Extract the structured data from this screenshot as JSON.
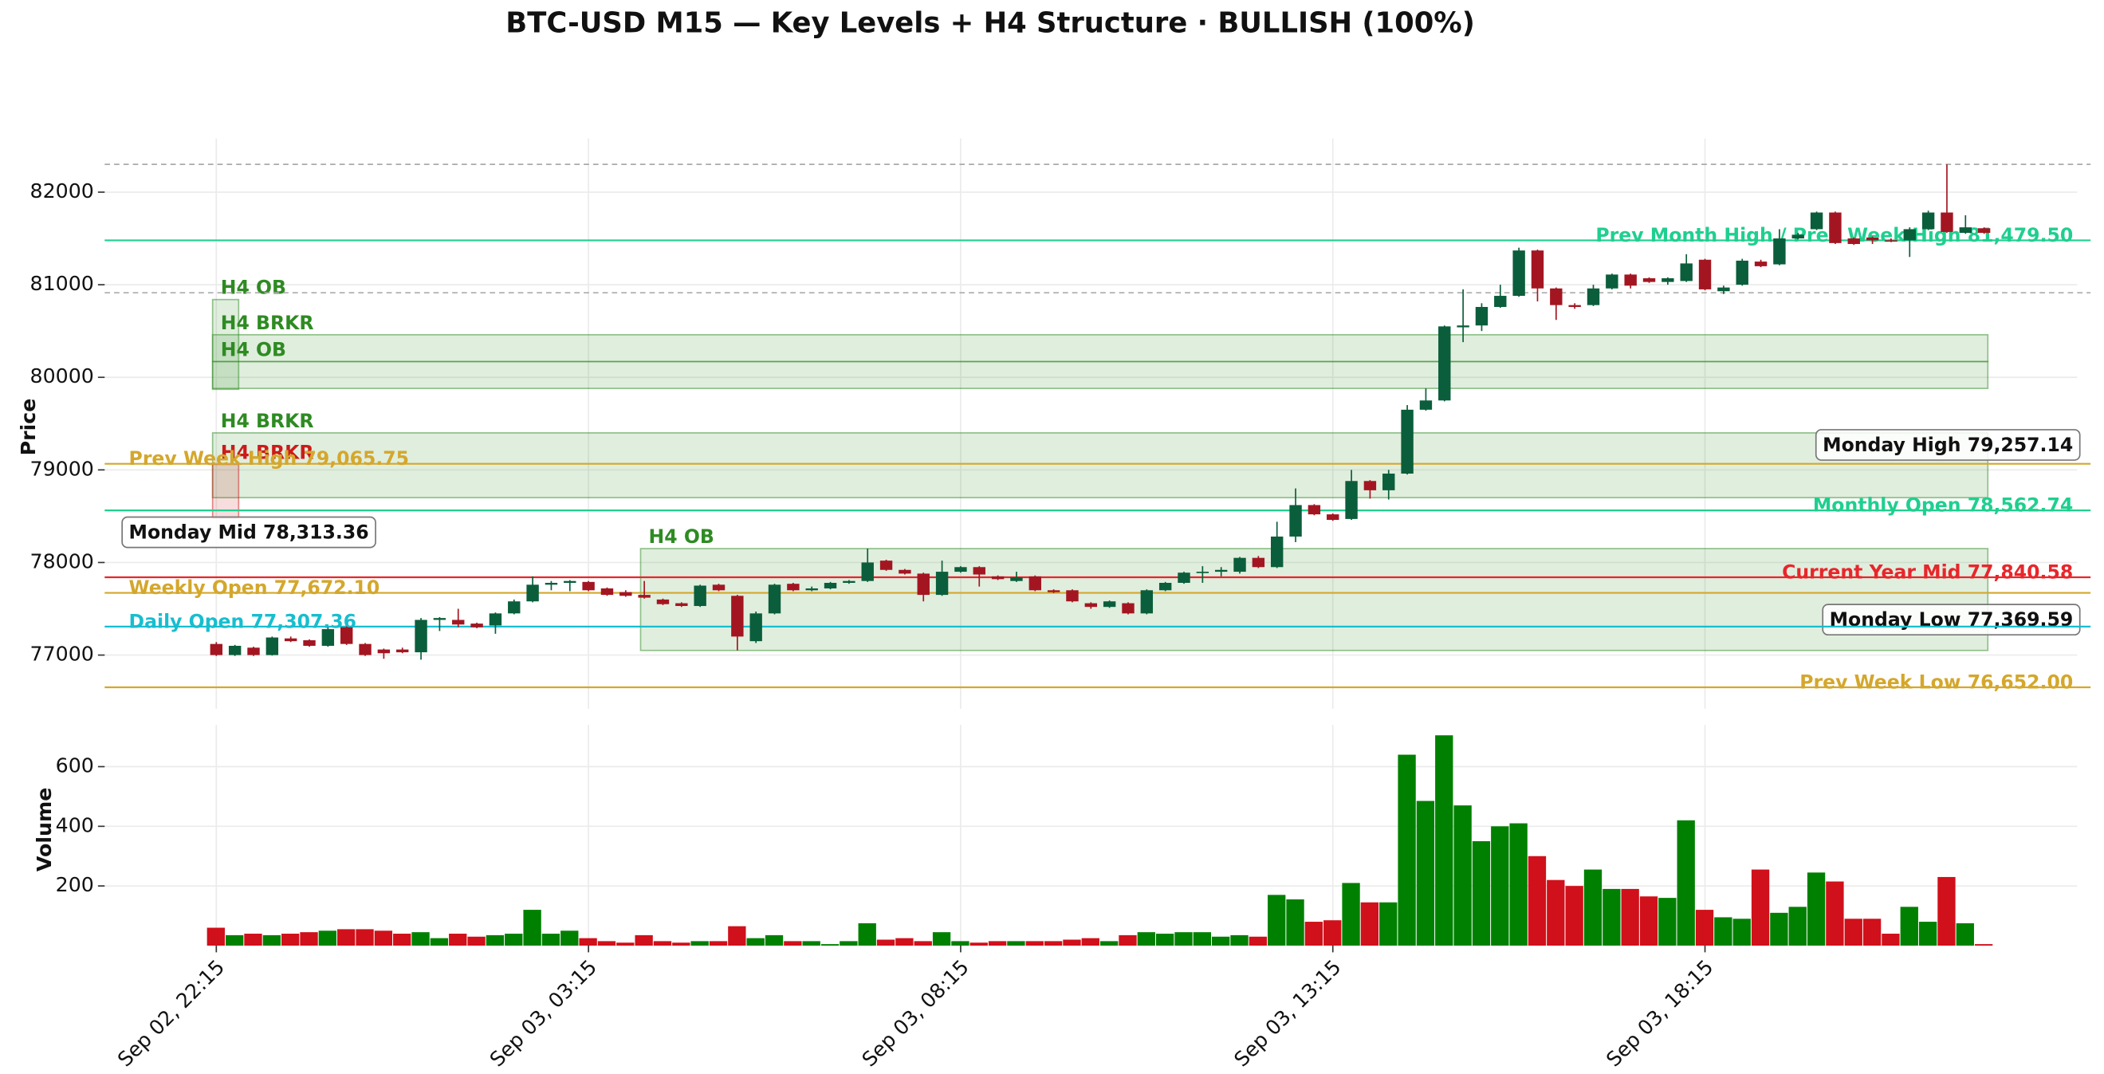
{
  "chart_data": [
    {
      "type": "candlestick",
      "title": "BTC-USD M15 — Key Levels + H4 Structure · BULLISH (100%)",
      "ylabel": "Price",
      "up_color": "#0b5e3b",
      "down_color": "#a31621",
      "grid": true,
      "xlim": [
        -6,
        100
      ],
      "ylim": [
        76420,
        82580
      ],
      "yticks": [
        77000,
        78000,
        79000,
        80000,
        81000,
        82000
      ],
      "categories": [
        "Sep 02, 22:15",
        null,
        null,
        null,
        null,
        null,
        null,
        null,
        null,
        null,
        null,
        null,
        null,
        null,
        null,
        null,
        null,
        null,
        null,
        null,
        "Sep 03, 03:15",
        null,
        null,
        null,
        null,
        null,
        null,
        null,
        null,
        null,
        null,
        null,
        null,
        null,
        null,
        null,
        null,
        null,
        null,
        null,
        "Sep 03, 08:15",
        null,
        null,
        null,
        null,
        null,
        null,
        null,
        null,
        null,
        null,
        null,
        null,
        null,
        null,
        null,
        null,
        null,
        null,
        null,
        "Sep 03, 13:15",
        null,
        null,
        null,
        null,
        null,
        null,
        null,
        null,
        null,
        null,
        null,
        null,
        null,
        null,
        null,
        null,
        null,
        null,
        null,
        "Sep 03, 18:15",
        null,
        null,
        null,
        null,
        null,
        null,
        null,
        null,
        null,
        null,
        null,
        null,
        null,
        null,
        null
      ],
      "open": [
        77120,
        77000,
        77080,
        77000,
        77180,
        77160,
        77100,
        77300,
        77120,
        77060,
        77060,
        77030,
        77380,
        77380,
        77340,
        77320,
        77450,
        77580,
        77760,
        77780,
        77790,
        77720,
        77680,
        77650,
        77600,
        77560,
        77530,
        77760,
        77640,
        77150,
        77450,
        77770,
        77700,
        77720,
        77780,
        77800,
        78020,
        77920,
        77880,
        77650,
        77900,
        77950,
        77850,
        77800,
        77850,
        77700,
        77700,
        77560,
        77520,
        77560,
        77450,
        77700,
        77780,
        77890,
        77900,
        77900,
        78050,
        77950,
        78280,
        78620,
        78520,
        78470,
        78880,
        78780,
        78960,
        79650,
        79750,
        80540,
        80560,
        80760,
        80880,
        81370,
        80960,
        80780,
        80780,
        80960,
        81110,
        81070,
        81030,
        81040,
        81270,
        80930,
        81000,
        81250,
        81220,
        81500,
        81600,
        81780,
        81500,
        81510,
        81480,
        81480,
        81600,
        81780,
        81560,
        81610
      ],
      "high": [
        77140,
        77110,
        77090,
        77200,
        77200,
        77170,
        77300,
        77310,
        77130,
        77070,
        77080,
        77400,
        77410,
        77500,
        77350,
        77460,
        77600,
        77850,
        77800,
        77810,
        77800,
        77730,
        77700,
        77800,
        77610,
        77570,
        77760,
        77770,
        77650,
        77470,
        77770,
        77780,
        77740,
        77790,
        77810,
        78150,
        78030,
        77930,
        77890,
        78020,
        77960,
        77960,
        77860,
        77900,
        77860,
        77710,
        77710,
        77570,
        77590,
        77570,
        77710,
        77790,
        77900,
        77960,
        77950,
        78060,
        78070,
        78440,
        78800,
        78630,
        78530,
        79000,
        78890,
        79000,
        79700,
        79880,
        80560,
        80950,
        80800,
        81000,
        81400,
        81380,
        80970,
        80800,
        81000,
        81120,
        81120,
        81080,
        81080,
        81330,
        81280,
        80990,
        81280,
        81270,
        81600,
        81560,
        81790,
        81790,
        81510,
        81520,
        81500,
        81620,
        81800,
        82300,
        81750,
        81620
      ],
      "low": [
        76990,
        76990,
        76990,
        76995,
        77140,
        77090,
        77090,
        77110,
        76990,
        76960,
        77020,
        76950,
        77260,
        77300,
        77290,
        77230,
        77440,
        77570,
        77700,
        77690,
        77690,
        77640,
        77630,
        77610,
        77540,
        77520,
        77520,
        77690,
        77050,
        77130,
        77440,
        77690,
        77690,
        77710,
        77770,
        77790,
        77910,
        77870,
        77580,
        77640,
        77890,
        77740,
        77810,
        77790,
        77690,
        77670,
        77570,
        77500,
        77510,
        77440,
        77440,
        77690,
        77770,
        77780,
        77850,
        77880,
        77940,
        77940,
        78220,
        78510,
        78450,
        78460,
        78690,
        78680,
        78950,
        79640,
        79740,
        80380,
        80500,
        80750,
        80870,
        80820,
        80620,
        80740,
        80770,
        80950,
        80960,
        81020,
        81000,
        81030,
        80940,
        80900,
        80990,
        81190,
        81210,
        81490,
        81590,
        81440,
        81430,
        81440,
        81460,
        81300,
        81590,
        81560,
        81550,
        81550
      ],
      "close": [
        77000,
        77100,
        77000,
        77190,
        77150,
        77100,
        77280,
        77120,
        77000,
        77020,
        77030,
        77380,
        77400,
        77330,
        77300,
        77450,
        77580,
        77760,
        77780,
        77800,
        77700,
        77650,
        77640,
        77620,
        77550,
        77530,
        77750,
        77700,
        77200,
        77450,
        77760,
        77700,
        77720,
        77780,
        77800,
        78000,
        77920,
        77880,
        77650,
        77900,
        77950,
        77870,
        77820,
        77840,
        77700,
        77680,
        77580,
        77520,
        77580,
        77450,
        77700,
        77780,
        77890,
        77900,
        77920,
        78050,
        77950,
        78280,
        78620,
        78520,
        78460,
        78880,
        78780,
        78960,
        79650,
        79750,
        80550,
        80560,
        80760,
        80880,
        81370,
        80960,
        80780,
        80760,
        80960,
        81110,
        80990,
        81030,
        81070,
        81230,
        80950,
        80970,
        81260,
        81200,
        81500,
        81540,
        81780,
        81450,
        81440,
        81480,
        81470,
        81600,
        81780,
        81570,
        81620,
        81560
      ],
      "dashed_levels": [
        82300,
        80913
      ],
      "levels": [
        {
          "label": "Prev Month High / Prev Week High 81,479.50",
          "value": 81479.5,
          "color": "#1fcf8f",
          "side": "right",
          "boxed": false
        },
        {
          "label": "Monday High 79,257.14",
          "value": 79257.14,
          "color": "#111111",
          "side": "right",
          "boxed": true
        },
        {
          "label": "Prev Week High 79,065.75",
          "value": 79065.75,
          "color": "#d4a72c",
          "side": "left",
          "boxed": false
        },
        {
          "label": "Monthly Open 78,562.74",
          "value": 78562.74,
          "color": "#1fcf8f",
          "side": "right",
          "boxed": false
        },
        {
          "label": "Monday Mid 78,313.36",
          "value": 78313.36,
          "color": "#111111",
          "side": "left",
          "boxed": true
        },
        {
          "label": "Current Year Mid 77,840.58",
          "value": 77840.58,
          "color": "#e8262b",
          "side": "right",
          "boxed": false
        },
        {
          "label": "Weekly Open 77,672.10",
          "value": 77672.1,
          "color": "#d4a72c",
          "side": "left",
          "boxed": false
        },
        {
          "label": "Monday Low 77,369.59",
          "value": 77369.59,
          "color": "#111111",
          "side": "right",
          "boxed": true
        },
        {
          "label": "Daily Open 77,307.36",
          "value": 77307.36,
          "color": "#17becf",
          "side": "left",
          "boxed": false
        },
        {
          "label": "Prev Week Low 76,652.00",
          "value": 76652,
          "color": "#d4a72c",
          "side": "right",
          "boxed": false
        }
      ],
      "zones": [
        {
          "label": "H4 OB",
          "start": -0.2,
          "end": 1.2,
          "low": 79870,
          "high": 80840,
          "color": "#2e8b22"
        },
        {
          "label": "H4 BRKR",
          "start": -0.2,
          "end": 95.2,
          "low": 80170,
          "high": 80460,
          "color": "#2e8b22"
        },
        {
          "label": "H4 OB",
          "start": -0.2,
          "end": 95.2,
          "low": 79880,
          "high": 80170,
          "color": "#2e8b22"
        },
        {
          "label": "H4 BRKR",
          "start": -0.2,
          "end": 95.2,
          "low": 78700,
          "high": 79400,
          "color": "#2e8b22"
        },
        {
          "label": "H4 BRKR",
          "start": -0.2,
          "end": 1.2,
          "low": 78480,
          "high": 79060,
          "color": "#cc1a1a"
        },
        {
          "label": "H4 OB",
          "start": 22.8,
          "end": 95.2,
          "low": 77050,
          "high": 78150,
          "color": "#2e8b22"
        }
      ]
    },
    {
      "type": "volume",
      "ylabel": "Volume",
      "up_color": "#008000",
      "down_color": "#d0101a",
      "grid": true,
      "ylim": [
        0,
        740
      ],
      "yticks": [
        200,
        400,
        600
      ],
      "values": [
        60,
        35,
        40,
        35,
        40,
        45,
        50,
        55,
        55,
        50,
        40,
        45,
        25,
        40,
        30,
        35,
        40,
        120,
        40,
        50,
        25,
        15,
        10,
        35,
        15,
        10,
        15,
        15,
        65,
        25,
        35,
        15,
        15,
        5,
        15,
        75,
        20,
        25,
        15,
        45,
        15,
        10,
        15,
        15,
        15,
        15,
        20,
        25,
        15,
        35,
        45,
        40,
        45,
        45,
        30,
        35,
        30,
        170,
        155,
        80,
        85,
        210,
        145,
        145,
        640,
        485,
        705,
        470,
        350,
        400,
        410,
        300,
        220,
        200,
        255,
        190,
        190,
        165,
        160,
        420,
        120,
        95,
        90,
        255,
        110,
        130,
        245,
        215,
        90,
        90,
        40,
        130,
        80,
        230,
        75,
        5
      ]
    }
  ]
}
